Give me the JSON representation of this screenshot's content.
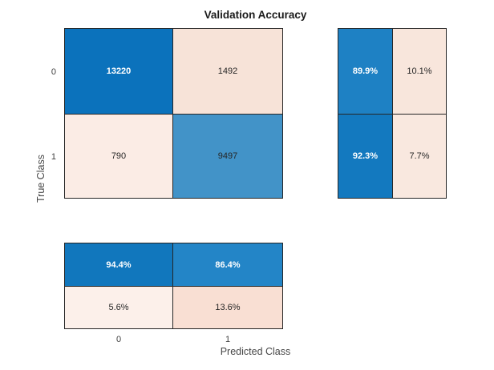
{
  "title": "Validation Accuracy",
  "axes": {
    "x_label": "Predicted Class",
    "y_label": "True Class",
    "x_ticks": [
      "0",
      "1"
    ],
    "y_ticks": [
      "0",
      "1"
    ]
  },
  "chart_data": {
    "type": "heatmap",
    "subtype": "confusion-matrix",
    "title": "Validation Accuracy",
    "xlabel": "Predicted Class",
    "ylabel": "True Class",
    "classes": [
      "0",
      "1"
    ],
    "matrix_counts": [
      [
        13220,
        1492
      ],
      [
        790,
        9497
      ]
    ],
    "row_summary_percent": [
      [
        "89.9%",
        "10.1%"
      ],
      [
        "92.3%",
        "7.7%"
      ]
    ],
    "column_summary_percent": [
      [
        "94.4%",
        "86.4%"
      ],
      [
        "5.6%",
        "13.6%"
      ]
    ],
    "legend_position": "none",
    "grid": "cell-borders"
  },
  "colors": {
    "blue_dark": "#0b72bc",
    "blue_medium": "#4293c8",
    "blue_summary": "#1e81c4",
    "pink_light": "#f7e3d8",
    "border": "#262626",
    "text_dark": "#262626",
    "text_light": "#ffffff"
  },
  "cells": {
    "m00": {
      "label": "13220",
      "bg": "#0b72bc",
      "fg": "#ffffff"
    },
    "m01": {
      "label": "1492",
      "bg": "#f7e3d8",
      "fg": "#262626"
    },
    "m10": {
      "label": "790",
      "bg": "#fbece5",
      "fg": "#262626"
    },
    "m11": {
      "label": "9497",
      "bg": "#4293c8",
      "fg": "#262626"
    },
    "r00": {
      "label": "89.9%",
      "bg": "#1e81c4",
      "fg": "#ffffff"
    },
    "r01": {
      "label": "10.1%",
      "bg": "#f8e6dc",
      "fg": "#262626"
    },
    "r10": {
      "label": "92.3%",
      "bg": "#1379bf",
      "fg": "#ffffff"
    },
    "r11": {
      "label": "7.7%",
      "bg": "#f9e8df",
      "fg": "#262626"
    },
    "c00": {
      "label": "94.4%",
      "bg": "#1177bd",
      "fg": "#ffffff"
    },
    "c01": {
      "label": "86.4%",
      "bg": "#2385c7",
      "fg": "#ffffff"
    },
    "c10": {
      "label": "5.6%",
      "bg": "#fcf0ea",
      "fg": "#262626"
    },
    "c11": {
      "label": "13.6%",
      "bg": "#f9dfd3",
      "fg": "#262626"
    }
  }
}
